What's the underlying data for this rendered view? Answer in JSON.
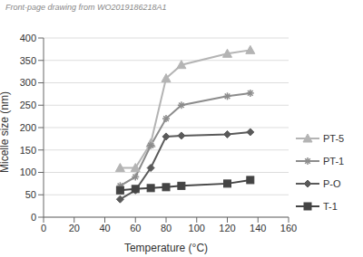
{
  "chart_data": {
    "type": "line",
    "title": "Front-page drawing from WO2019186218A1",
    "x_label": "Temperature (°C)",
    "y_label": "Micelle size (nm)",
    "x": [
      50,
      60,
      70,
      80,
      90,
      120,
      135
    ],
    "series": [
      {
        "name": "PT-5",
        "color": "#b4b4b4",
        "marker": "triangle",
        "values": [
          110,
          110,
          165,
          310,
          340,
          365,
          373
        ]
      },
      {
        "name": "PT-1",
        "color": "#8c8c8c",
        "marker": "star",
        "values": [
          70,
          90,
          160,
          220,
          250,
          270,
          277
        ]
      },
      {
        "name": "P-O",
        "color": "#5a5a5a",
        "marker": "diamond",
        "values": [
          40,
          60,
          110,
          180,
          182,
          185,
          190
        ]
      },
      {
        "name": "T-1",
        "color": "#444444",
        "marker": "square",
        "values": [
          60,
          63,
          65,
          67,
          70,
          75,
          83
        ]
      }
    ],
    "xlim": [
      0,
      160
    ],
    "xticks": [
      0,
      20,
      40,
      60,
      80,
      100,
      120,
      140,
      160
    ],
    "ylim": [
      0,
      400
    ],
    "yticks": [
      0,
      50,
      100,
      150,
      200,
      250,
      300,
      350,
      400
    ],
    "grid": true,
    "legend": "right"
  }
}
